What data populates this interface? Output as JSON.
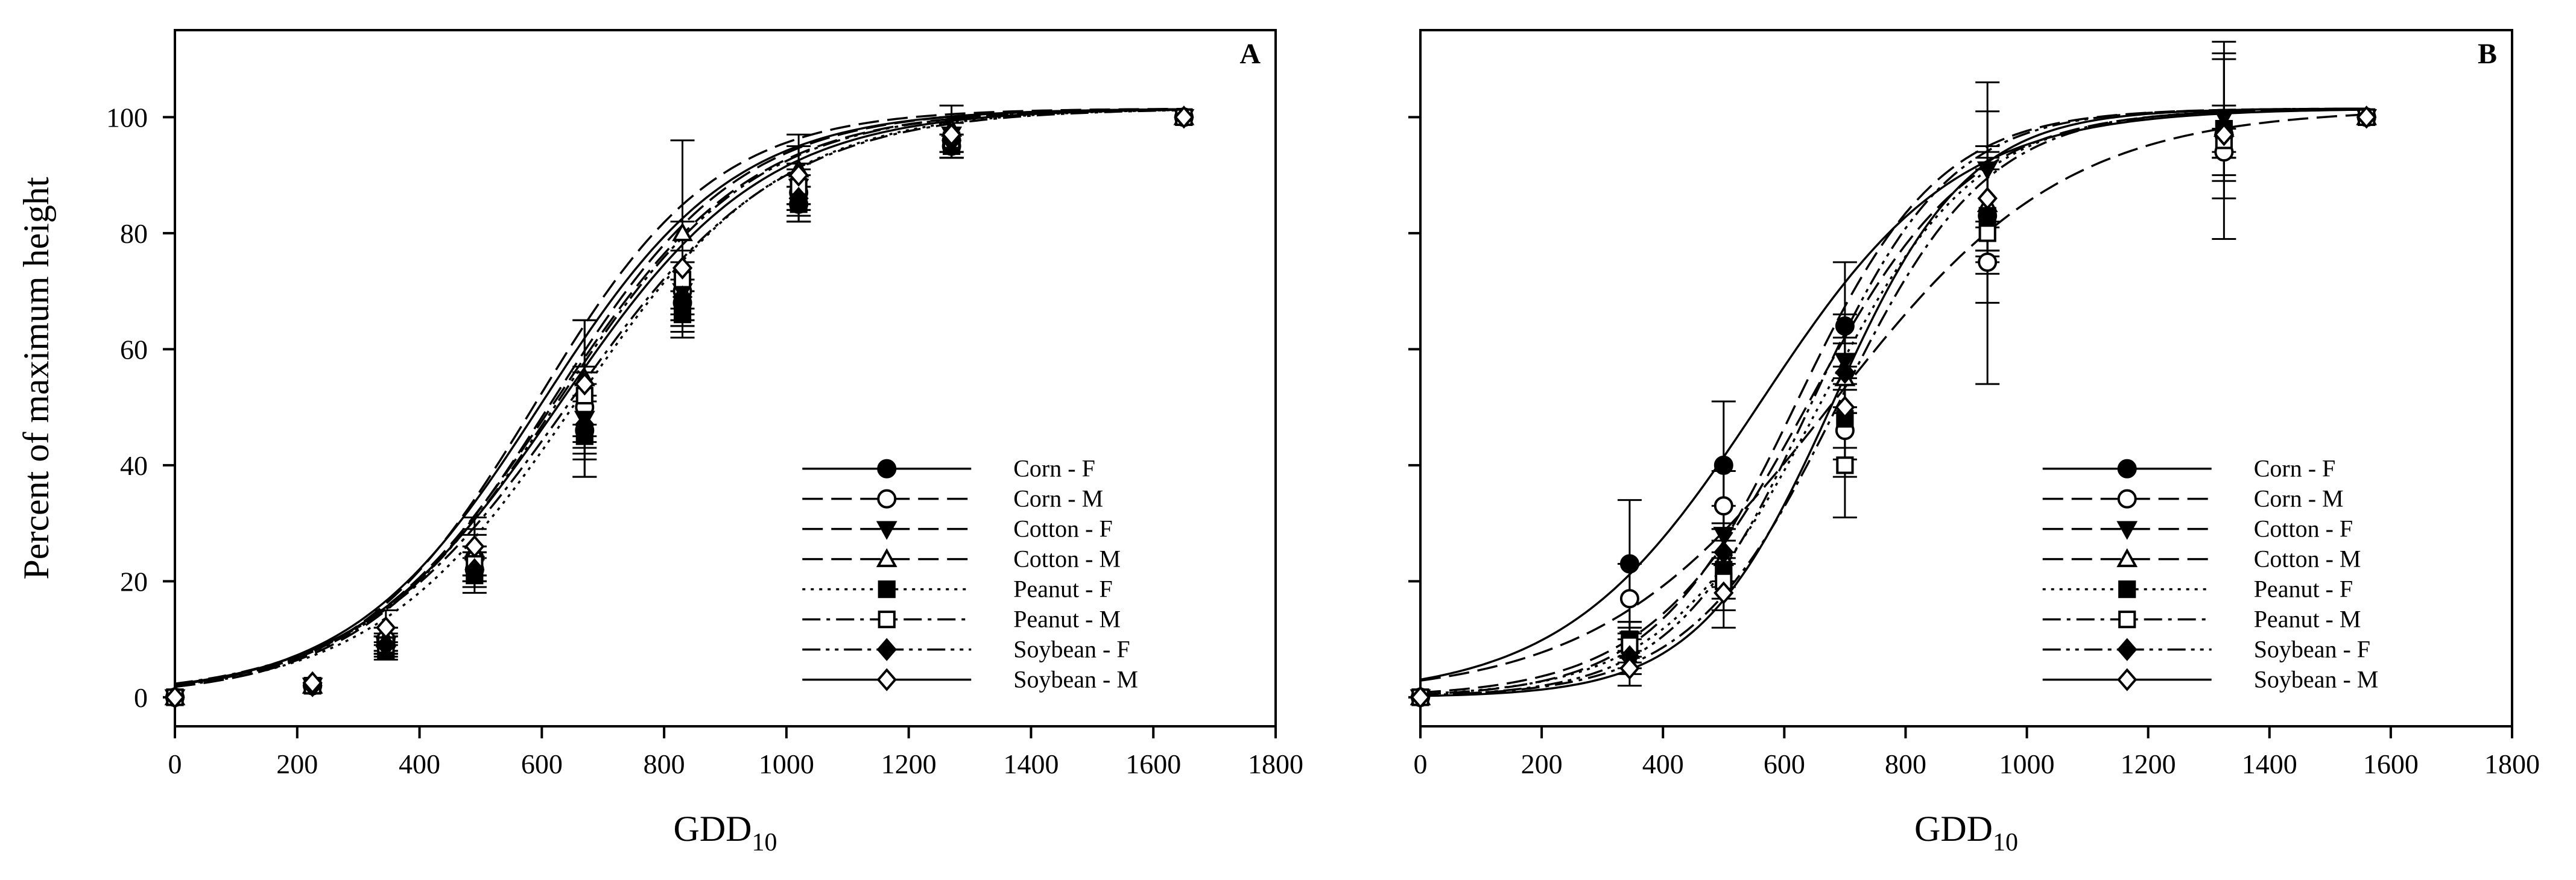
{
  "chart_data": [
    {
      "type": "line",
      "panel_label": "A",
      "xlabel": "GDD",
      "xlabel_sub": "10",
      "ylabel": "Percent of maximum height",
      "xlim": [
        0,
        1800
      ],
      "ylim": [
        -5,
        115
      ],
      "xticks": [
        0,
        200,
        400,
        600,
        800,
        1000,
        1200,
        1400,
        1600,
        1800
      ],
      "yticks": [
        0,
        20,
        40,
        60,
        80,
        100
      ],
      "legend_position": "lower-right",
      "series": [
        {
          "name": "Corn - F",
          "marker": "circle",
          "filled": true,
          "dash": "solid",
          "x": [
            0,
            225,
            345,
            490,
            670,
            830,
            1020,
            1270,
            1650
          ],
          "y": [
            0,
            2,
            9,
            22,
            46,
            68,
            85,
            95,
            100
          ],
          "err": [
            0,
            0,
            1.5,
            3,
            5,
            4,
            3,
            2,
            0
          ],
          "fit": {
            "x0": 630,
            "k": 0.006
          }
        },
        {
          "name": "Corn - M",
          "marker": "circle",
          "filled": false,
          "dash": "long-dash",
          "x": [
            0,
            225,
            345,
            490,
            670,
            830,
            1020,
            1270,
            1650
          ],
          "y": [
            0,
            2,
            10,
            24,
            50,
            70,
            87,
            96,
            100
          ],
          "err": [
            0,
            0,
            2,
            4,
            6,
            5,
            4,
            3,
            0
          ],
          "fit": {
            "x0": 620,
            "k": 0.0062
          }
        },
        {
          "name": "Cotton - F",
          "marker": "triangle-down",
          "filled": true,
          "dash": "long-dash",
          "x": [
            0,
            225,
            345,
            490,
            670,
            830,
            1020,
            1270,
            1650
          ],
          "y": [
            0,
            2,
            9,
            23,
            48,
            70,
            88,
            97,
            100
          ],
          "err": [
            0,
            0,
            1.5,
            3,
            6,
            5,
            4,
            3,
            0
          ],
          "fit": {
            "x0": 615,
            "k": 0.0065
          }
        },
        {
          "name": "Cotton - M",
          "marker": "triangle-up",
          "filled": false,
          "dash": "long-dash",
          "x": [
            0,
            225,
            345,
            490,
            670,
            830,
            1020,
            1270,
            1650
          ],
          "y": [
            0,
            2,
            10,
            25,
            55,
            80,
            91,
            98,
            100
          ],
          "err": [
            0,
            0,
            2,
            4,
            10,
            16,
            6,
            4,
            0
          ],
          "fit": {
            "x0": 590,
            "k": 0.0068
          }
        },
        {
          "name": "Peanut - F",
          "marker": "square",
          "filled": true,
          "dash": "dot",
          "x": [
            0,
            225,
            345,
            490,
            670,
            830,
            1020,
            1270,
            1650
          ],
          "y": [
            0,
            2,
            8,
            21,
            45,
            66,
            85,
            95,
            100
          ],
          "err": [
            0,
            0,
            1.5,
            3,
            7,
            4,
            3,
            2,
            0
          ],
          "fit": {
            "x0": 655,
            "k": 0.006
          }
        },
        {
          "name": "Peanut - M",
          "marker": "square",
          "filled": false,
          "dash": "dash-dot",
          "x": [
            0,
            225,
            345,
            490,
            670,
            830,
            1020,
            1270,
            1650
          ],
          "y": [
            0,
            2,
            9,
            23,
            52,
            72,
            88,
            96,
            100
          ],
          "err": [
            0,
            0,
            2,
            3,
            5,
            5,
            4,
            3,
            0
          ],
          "fit": {
            "x0": 645,
            "k": 0.0058
          }
        },
        {
          "name": "Soybean - F",
          "marker": "diamond",
          "filled": true,
          "dash": "dash-dot-dot",
          "x": [
            0,
            225,
            345,
            490,
            670,
            830,
            1020,
            1270,
            1650
          ],
          "y": [
            0,
            2,
            9,
            22,
            47,
            69,
            86,
            96,
            100
          ],
          "err": [
            0,
            0,
            1.5,
            3,
            9,
            6,
            4,
            3,
            0
          ],
          "fit": {
            "x0": 625,
            "k": 0.0062
          }
        },
        {
          "name": "Soybean - M",
          "marker": "diamond",
          "filled": false,
          "dash": "solid",
          "x": [
            0,
            225,
            345,
            490,
            670,
            830,
            1020,
            1270,
            1650
          ],
          "y": [
            0,
            2.5,
            12,
            26,
            54,
            74,
            90,
            97,
            100
          ],
          "err": [
            0,
            0,
            3,
            5,
            11,
            8,
            5,
            3,
            0
          ],
          "fit": {
            "x0": 600,
            "k": 0.0064
          }
        }
      ]
    },
    {
      "type": "line",
      "panel_label": "B",
      "xlabel": "GDD",
      "xlabel_sub": "10",
      "ylabel": "",
      "xlim": [
        0,
        1800
      ],
      "ylim": [
        -5,
        115
      ],
      "xticks": [
        0,
        200,
        400,
        600,
        800,
        1000,
        1200,
        1400,
        1600,
        1800
      ],
      "yticks": [
        0,
        20,
        40,
        60,
        80,
        100
      ],
      "legend_position": "lower-right",
      "series": [
        {
          "name": "Corn - F",
          "marker": "circle",
          "filled": true,
          "dash": "solid",
          "x": [
            0,
            345,
            500,
            700,
            935,
            1325,
            1560
          ],
          "y": [
            0,
            23,
            40,
            64,
            83,
            97,
            100
          ],
          "err": [
            0,
            11,
            11,
            11,
            8,
            4,
            0
          ],
          "fit": {
            "x0": 560,
            "k": 0.0062
          }
        },
        {
          "name": "Corn - M",
          "marker": "circle",
          "filled": false,
          "dash": "long-dash",
          "x": [
            0,
            345,
            500,
            700,
            935,
            1325,
            1560
          ],
          "y": [
            0,
            17,
            33,
            46,
            75,
            94,
            100
          ],
          "err": [
            0,
            6,
            6,
            8,
            7,
            4,
            0
          ],
          "fit": {
            "x0": 680,
            "k": 0.0052
          }
        },
        {
          "name": "Cotton - F",
          "marker": "triangle-down",
          "filled": true,
          "dash": "long-dash",
          "x": [
            0,
            345,
            500,
            700,
            935,
            1325,
            1560
          ],
          "y": [
            0,
            10,
            28,
            58,
            91,
            100,
            100
          ],
          "err": [
            0,
            3,
            5,
            8,
            10,
            11,
            0
          ],
          "fit": {
            "x0": 620,
            "k": 0.0085
          }
        },
        {
          "name": "Cotton - M",
          "marker": "triangle-up",
          "filled": false,
          "dash": "long-dash",
          "x": [
            0,
            345,
            500,
            700,
            935,
            1325,
            1560
          ],
          "y": [
            0,
            8,
            24,
            55,
            85,
            98,
            100
          ],
          "err": [
            0,
            3,
            5,
            6,
            9,
            12,
            0
          ],
          "fit": {
            "x0": 640,
            "k": 0.0075
          }
        },
        {
          "name": "Peanut - F",
          "marker": "square",
          "filled": true,
          "dash": "dot",
          "x": [
            0,
            345,
            500,
            700,
            935,
            1325,
            1560
          ],
          "y": [
            0,
            10,
            22,
            48,
            83,
            98,
            100
          ],
          "err": [
            0,
            3,
            5,
            7,
            10,
            4,
            0
          ],
          "fit": {
            "x0": 660,
            "k": 0.0078
          }
        },
        {
          "name": "Peanut - M",
          "marker": "square",
          "filled": false,
          "dash": "dash-dot",
          "x": [
            0,
            345,
            500,
            700,
            935,
            1325,
            1560
          ],
          "y": [
            0,
            9,
            20,
            40,
            80,
            96,
            100
          ],
          "err": [
            0,
            3,
            5,
            9,
            26,
            17,
            0
          ],
          "fit": {
            "x0": 690,
            "k": 0.0082
          }
        },
        {
          "name": "Soybean - F",
          "marker": "diamond",
          "filled": true,
          "dash": "dash-dot-dot",
          "x": [
            0,
            345,
            500,
            700,
            935,
            1325,
            1560
          ],
          "y": [
            0,
            7,
            25,
            56,
            86,
            97,
            100
          ],
          "err": [
            0,
            3,
            5,
            6,
            9,
            4,
            0
          ],
          "fit": {
            "x0": 645,
            "k": 0.0088
          }
        },
        {
          "name": "Soybean - M",
          "marker": "diamond",
          "filled": false,
          "dash": "solid",
          "x": [
            0,
            345,
            500,
            700,
            935,
            1325,
            1560
          ],
          "y": [
            0,
            5,
            18,
            50,
            86,
            97,
            100
          ],
          "err": [
            0,
            3,
            6,
            7,
            9,
            4,
            0
          ],
          "fit": {
            "x0": 680,
            "k": 0.009
          }
        }
      ]
    }
  ]
}
